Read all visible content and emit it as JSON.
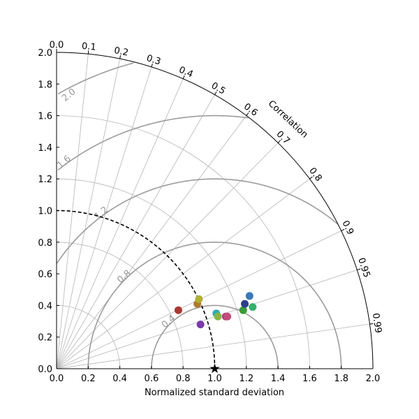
{
  "chart_data": {
    "type": "scatter",
    "subtype": "taylor-diagram",
    "xlabel": "Normalized standard deviation",
    "ylabel": "",
    "correlation_label": "Correlation",
    "xlim": [
      0,
      2
    ],
    "ylim": [
      0,
      2
    ],
    "x_ticks": [
      "0.0",
      "0.2",
      "0.4",
      "0.6",
      "0.8",
      "1.0",
      "1.2",
      "1.4",
      "1.6",
      "1.8",
      "2.0"
    ],
    "y_ticks": [
      "0.0",
      "0.2",
      "0.4",
      "0.6",
      "0.8",
      "1.0",
      "1.2",
      "1.4",
      "1.6",
      "1.8",
      "2.0"
    ],
    "correlation_ticks": [
      {
        "value": 0.0,
        "label": "0.0"
      },
      {
        "value": 0.1,
        "label": "0.1"
      },
      {
        "value": 0.2,
        "label": "0.2"
      },
      {
        "value": 0.3,
        "label": "0.3"
      },
      {
        "value": 0.4,
        "label": "0.4"
      },
      {
        "value": 0.5,
        "label": "0.5"
      },
      {
        "value": 0.6,
        "label": "0.6"
      },
      {
        "value": 0.7,
        "label": "0.7"
      },
      {
        "value": 0.8,
        "label": "0.8"
      },
      {
        "value": 0.9,
        "label": "0.9"
      },
      {
        "value": 0.95,
        "label": "0.95"
      },
      {
        "value": 0.99,
        "label": "0.99"
      }
    ],
    "std_circles": [
      0.4,
      0.8,
      1.2,
      1.6,
      2.0
    ],
    "rms_contours": [
      0.4,
      0.8,
      1.2,
      1.6,
      2.0
    ],
    "rms_labels": [
      {
        "value": 0.4,
        "label": "0.4"
      },
      {
        "value": 0.8,
        "label": "0.8"
      },
      {
        "value": 1.2,
        "label": "1.2"
      },
      {
        "value": 1.6,
        "label": "1.6"
      },
      {
        "value": 2.0,
        "label": "2.0"
      }
    ],
    "reference": {
      "std": 1.0,
      "marker": "star"
    },
    "grid": true,
    "points": [
      {
        "x": 0.77,
        "y": 0.37,
        "color": "#a83a32"
      },
      {
        "x": 0.89,
        "y": 0.41,
        "color": "#b07a2a"
      },
      {
        "x": 0.9,
        "y": 0.44,
        "color": "#b0b035"
      },
      {
        "x": 0.91,
        "y": 0.28,
        "color": "#7a3aaa"
      },
      {
        "x": 1.01,
        "y": 0.35,
        "color": "#33aab2"
      },
      {
        "x": 1.02,
        "y": 0.33,
        "color": "#8ab540"
      },
      {
        "x": 1.07,
        "y": 0.33,
        "color": "#b0358a"
      },
      {
        "x": 1.08,
        "y": 0.33,
        "color": "#c24f7a"
      },
      {
        "x": 1.18,
        "y": 0.37,
        "color": "#3a9a3a"
      },
      {
        "x": 1.19,
        "y": 0.41,
        "color": "#2b3f8f"
      },
      {
        "x": 1.22,
        "y": 0.46,
        "color": "#3a78b8"
      },
      {
        "x": 1.24,
        "y": 0.39,
        "color": "#35b06a"
      }
    ]
  }
}
